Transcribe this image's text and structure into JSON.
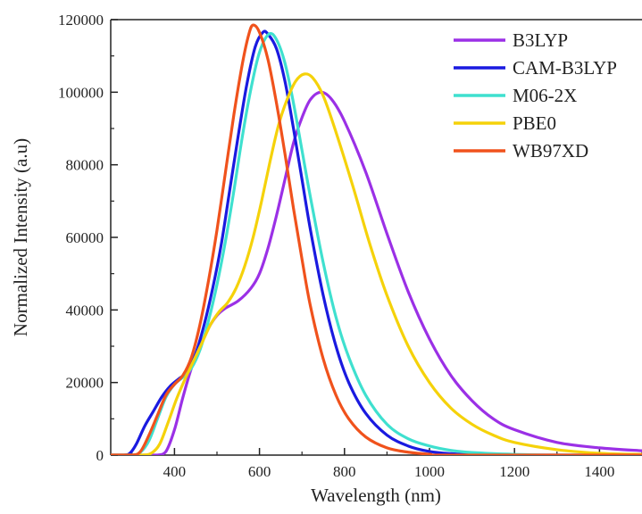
{
  "chart_data": {
    "type": "line",
    "title": "",
    "xlabel": "Wavelength (nm)",
    "ylabel": "Normalized Intensity (a.u)",
    "xlim": [
      250,
      1500
    ],
    "ylim": [
      0,
      120000
    ],
    "x_ticks": [
      400,
      600,
      800,
      1000,
      1200,
      1400
    ],
    "y_ticks": [
      0,
      20000,
      40000,
      60000,
      80000,
      100000,
      120000
    ],
    "x_tick_labels": [
      "400",
      "600",
      "800",
      "1000",
      "1200",
      "1400"
    ],
    "y_tick_labels": [
      "0",
      "20000",
      "40000",
      "60000",
      "80000",
      "100000",
      "120000"
    ],
    "grid": false,
    "legend_position": "top-right",
    "series": [
      {
        "name": "B3LYP",
        "color": "#9b30e6",
        "points": [
          [
            250,
            0
          ],
          [
            330,
            0
          ],
          [
            360,
            0
          ],
          [
            380,
            1000
          ],
          [
            400,
            7000
          ],
          [
            420,
            16000
          ],
          [
            440,
            24000
          ],
          [
            460,
            30000
          ],
          [
            480,
            35000
          ],
          [
            500,
            38500
          ],
          [
            520,
            40500
          ],
          [
            550,
            42500
          ],
          [
            580,
            46000
          ],
          [
            600,
            50000
          ],
          [
            620,
            57000
          ],
          [
            640,
            66000
          ],
          [
            660,
            76000
          ],
          [
            680,
            86000
          ],
          [
            700,
            93000
          ],
          [
            720,
            98000
          ],
          [
            745,
            100000
          ],
          [
            770,
            98000
          ],
          [
            800,
            92000
          ],
          [
            850,
            78000
          ],
          [
            900,
            61000
          ],
          [
            950,
            45000
          ],
          [
            1000,
            32000
          ],
          [
            1050,
            22000
          ],
          [
            1100,
            15000
          ],
          [
            1150,
            10000
          ],
          [
            1200,
            7000
          ],
          [
            1300,
            3500
          ],
          [
            1400,
            2000
          ],
          [
            1500,
            1200
          ]
        ]
      },
      {
        "name": "CAM-B3LYP",
        "color": "#1a1ae0",
        "points": [
          [
            250,
            0
          ],
          [
            280,
            0
          ],
          [
            295,
            500
          ],
          [
            310,
            3000
          ],
          [
            330,
            8000
          ],
          [
            350,
            12000
          ],
          [
            370,
            16000
          ],
          [
            390,
            19000
          ],
          [
            410,
            21000
          ],
          [
            430,
            23000
          ],
          [
            450,
            28000
          ],
          [
            470,
            36000
          ],
          [
            490,
            46000
          ],
          [
            510,
            58000
          ],
          [
            530,
            73000
          ],
          [
            550,
            88000
          ],
          [
            570,
            102000
          ],
          [
            590,
            112500
          ],
          [
            608,
            116500
          ],
          [
            620,
            116000
          ],
          [
            640,
            112000
          ],
          [
            660,
            103000
          ],
          [
            680,
            90000
          ],
          [
            700,
            76000
          ],
          [
            720,
            62000
          ],
          [
            750,
            44000
          ],
          [
            780,
            30000
          ],
          [
            810,
            20000
          ],
          [
            850,
            11500
          ],
          [
            900,
            5500
          ],
          [
            950,
            2500
          ],
          [
            1000,
            1000
          ],
          [
            1050,
            400
          ],
          [
            1100,
            150
          ],
          [
            1200,
            0
          ],
          [
            1500,
            0
          ]
        ]
      },
      {
        "name": "M06-2X",
        "color": "#3fe0cf",
        "points": [
          [
            250,
            0
          ],
          [
            300,
            0
          ],
          [
            320,
            800
          ],
          [
            340,
            4000
          ],
          [
            360,
            10000
          ],
          [
            380,
            16000
          ],
          [
            400,
            19500
          ],
          [
            420,
            21500
          ],
          [
            440,
            24000
          ],
          [
            460,
            29000
          ],
          [
            480,
            37000
          ],
          [
            500,
            47000
          ],
          [
            520,
            59000
          ],
          [
            540,
            73000
          ],
          [
            560,
            88000
          ],
          [
            580,
            101000
          ],
          [
            600,
            111000
          ],
          [
            622,
            116000
          ],
          [
            640,
            114500
          ],
          [
            660,
            108000
          ],
          [
            680,
            97000
          ],
          [
            700,
            84000
          ],
          [
            720,
            71000
          ],
          [
            750,
            53000
          ],
          [
            780,
            38000
          ],
          [
            810,
            27000
          ],
          [
            850,
            16500
          ],
          [
            900,
            8500
          ],
          [
            950,
            4500
          ],
          [
            1000,
            2500
          ],
          [
            1050,
            1300
          ],
          [
            1100,
            700
          ],
          [
            1200,
            200
          ],
          [
            1300,
            0
          ],
          [
            1500,
            0
          ]
        ]
      },
      {
        "name": "PBE0",
        "color": "#f5d20a",
        "points": [
          [
            250,
            0
          ],
          [
            320,
            0
          ],
          [
            345,
            500
          ],
          [
            365,
            3000
          ],
          [
            385,
            9000
          ],
          [
            405,
            15500
          ],
          [
            425,
            21000
          ],
          [
            445,
            26000
          ],
          [
            465,
            31000
          ],
          [
            485,
            36000
          ],
          [
            505,
            39500
          ],
          [
            525,
            42000
          ],
          [
            545,
            46000
          ],
          [
            565,
            52000
          ],
          [
            585,
            60000
          ],
          [
            605,
            70000
          ],
          [
            625,
            81000
          ],
          [
            645,
            91000
          ],
          [
            665,
            98000
          ],
          [
            685,
            103000
          ],
          [
            705,
            105000
          ],
          [
            725,
            104000
          ],
          [
            750,
            99000
          ],
          [
            780,
            89000
          ],
          [
            820,
            74000
          ],
          [
            860,
            58000
          ],
          [
            900,
            44000
          ],
          [
            950,
            30000
          ],
          [
            1000,
            20000
          ],
          [
            1050,
            13000
          ],
          [
            1100,
            8500
          ],
          [
            1150,
            5500
          ],
          [
            1200,
            3500
          ],
          [
            1300,
            1500
          ],
          [
            1400,
            500
          ],
          [
            1500,
            200
          ]
        ]
      },
      {
        "name": "WB97XD",
        "color": "#f0521c",
        "points": [
          [
            250,
            0
          ],
          [
            300,
            0
          ],
          [
            320,
            1000
          ],
          [
            340,
            5500
          ],
          [
            360,
            11000
          ],
          [
            380,
            16500
          ],
          [
            400,
            19500
          ],
          [
            420,
            22000
          ],
          [
            440,
            27000
          ],
          [
            460,
            36000
          ],
          [
            480,
            48000
          ],
          [
            500,
            62000
          ],
          [
            520,
            78000
          ],
          [
            540,
            94000
          ],
          [
            560,
            108000
          ],
          [
            575,
            116000
          ],
          [
            585,
            118500
          ],
          [
            600,
            116500
          ],
          [
            620,
            109000
          ],
          [
            640,
            97000
          ],
          [
            660,
            83000
          ],
          [
            680,
            68000
          ],
          [
            700,
            54000
          ],
          [
            720,
            41000
          ],
          [
            750,
            26500
          ],
          [
            780,
            16500
          ],
          [
            810,
            10000
          ],
          [
            850,
            5000
          ],
          [
            900,
            2000
          ],
          [
            950,
            800
          ],
          [
            1000,
            250
          ],
          [
            1050,
            0
          ],
          [
            1500,
            0
          ]
        ]
      }
    ]
  }
}
